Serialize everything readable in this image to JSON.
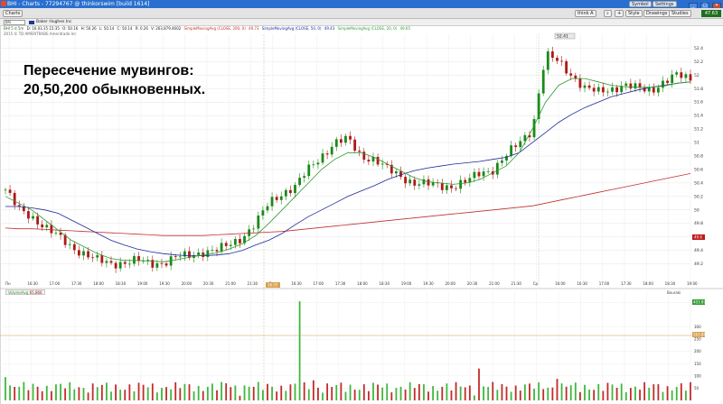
{
  "window": {
    "title": "BHI - Charts - 77294767 @ thinkorswim [build 1614]",
    "controls": [
      "_",
      "□",
      "✕"
    ]
  },
  "toolbar": {
    "charts_tab": "Charts",
    "symbol": "BHI",
    "style_button": "Style",
    "drawings_button": "Drawings",
    "studies_button": "Studies",
    "settings_button": "Settings",
    "symbol_button": "Symbol",
    "think_button": "think A",
    "last_price": "47.63"
  },
  "symbol_bar": {
    "input": "bhi",
    "company": "Baker Hughes Inc"
  },
  "legend": {
    "period": "BHI 5 d 5m",
    "date": "D: 16.03.15 15:35",
    "open": "O: 50.16",
    "high": "H: 50.26",
    "low": "L: 50.14",
    "close": "C: 50.14",
    "range": "R: 0.26",
    "volume": "V: 263,879.4602",
    "sma200": "SimpleMovingAvg (CLOSE, 200, 0)",
    "sma200_val": "49.73",
    "sma50": "SimpleMovingAvg (CLOSE, 50, 0)",
    "sma50_val": "49.43",
    "sma20": "SimpleMovingAvg (CLOSE, 20, 0)",
    "sma20_val": "49.65",
    "copyright": "2015 © TD AMERITRADE Ameritrade Inc"
  },
  "overlay": {
    "line1": "Пересечение мувингов:",
    "line2": "20,50,200 обыкновенных."
  },
  "price_axis": {
    "labels": [
      "52.4",
      "52.2",
      "52",
      "51.8",
      "51.6",
      "51.4",
      "51.2",
      "51",
      "50.8",
      "50.6",
      "50.4",
      "50.2",
      "50",
      "49.8",
      "49.6",
      "49.4",
      "49.2"
    ],
    "current_marker": "49.6",
    "peak_label": "52.41"
  },
  "time_axis": {
    "labels": [
      "Пн",
      "16:30",
      "17:00",
      "17:30",
      "18:00",
      "18:30",
      "19:00",
      "19:30",
      "20:00",
      "20:30",
      "21:00",
      "21:30",
      "Вт",
      "16:30",
      "17:00",
      "17:30",
      "18:00",
      "18:30",
      "19:00",
      "19:30",
      "20:00",
      "20:30",
      "21:00",
      "21:30",
      "Ср",
      "16:00",
      "16:30",
      "17:00",
      "17:30",
      "18:00",
      "18:30",
      "19:00"
    ],
    "cursor_date": "16.03"
  },
  "volume": {
    "study_name": "VolumeAvg",
    "study_value": "65,866",
    "right_label": "Bouraki",
    "axis_labels": [
      "400",
      "300",
      "250",
      "200",
      "150",
      "100",
      "50"
    ],
    "current_tag": "403.89",
    "avg_tag": "263.88"
  },
  "colors": {
    "up": "#1a8a1a",
    "down": "#b01818",
    "sma20": "#2e9a2e",
    "sma50": "#1c2a9a",
    "sma200": "#c03030",
    "title_bar": "#2a6fcf"
  },
  "chart_data": {
    "type": "line",
    "ylim": [
      49.1,
      52.5
    ],
    "x": [
      0,
      5,
      10,
      15,
      20,
      25,
      30,
      35,
      40,
      45,
      50,
      55,
      60,
      65,
      70,
      75,
      80,
      85,
      90,
      95,
      100,
      105,
      110,
      115,
      120,
      125,
      130,
      135,
      140,
      145,
      150,
      155,
      160,
      165,
      170,
      175,
      180,
      185,
      190,
      195,
      200,
      205,
      210,
      215,
      220,
      225,
      230,
      235,
      240,
      245,
      250,
      255,
      260
    ],
    "series": [
      {
        "name": "price",
        "values": [
          50.3,
          50.0,
          49.9,
          49.75,
          49.6,
          49.45,
          49.35,
          49.25,
          49.2,
          49.22,
          49.25,
          49.2,
          49.22,
          49.3,
          49.32,
          49.38,
          49.4,
          49.48,
          49.6,
          49.8,
          50.1,
          50.25,
          50.35,
          50.6,
          50.8,
          51.0,
          51.05,
          50.8,
          50.75,
          50.6,
          50.5,
          50.4,
          50.38,
          50.36,
          50.35,
          50.42,
          50.55,
          50.6,
          50.8,
          51.0,
          51.2,
          52.3,
          52.2,
          52.0,
          51.8,
          51.75,
          51.8,
          51.85,
          51.8,
          51.78,
          51.9,
          52.0,
          51.95
        ]
      },
      {
        "name": "SimpleMovingAvg (CLOSE, 20, 0)",
        "values": [
          50.2,
          50.1,
          50.0,
          49.85,
          49.7,
          49.55,
          49.45,
          49.35,
          49.28,
          49.25,
          49.25,
          49.24,
          49.23,
          49.26,
          49.3,
          49.33,
          49.36,
          49.42,
          49.5,
          49.62,
          49.8,
          50.0,
          50.2,
          50.4,
          50.6,
          50.75,
          50.85,
          50.85,
          50.78,
          50.68,
          50.58,
          50.48,
          50.42,
          50.4,
          50.38,
          50.4,
          50.45,
          50.55,
          50.65,
          50.85,
          51.2,
          51.6,
          51.85,
          51.95,
          51.95,
          51.9,
          51.85,
          51.83,
          51.82,
          51.82,
          51.84,
          51.88,
          51.9
        ]
      },
      {
        "name": "SimpleMovingAvg (CLOSE, 50, 0)",
        "values": [
          50.05,
          50.05,
          50.03,
          50.0,
          49.95,
          49.85,
          49.75,
          49.65,
          49.55,
          49.48,
          49.42,
          49.38,
          49.35,
          49.33,
          49.32,
          49.32,
          49.33,
          49.35,
          49.4,
          49.48,
          49.55,
          49.65,
          49.78,
          49.9,
          50.0,
          50.1,
          50.2,
          50.28,
          50.36,
          50.45,
          50.52,
          50.58,
          50.62,
          50.65,
          50.68,
          50.7,
          50.72,
          50.75,
          50.78,
          50.85,
          51.0,
          51.15,
          51.3,
          51.42,
          51.52,
          51.6,
          51.68,
          51.73,
          51.78,
          51.82,
          51.85,
          51.88,
          51.9
        ]
      },
      {
        "name": "SimpleMovingAvg (CLOSE, 200, 0)",
        "values": [
          49.73,
          49.72,
          49.72,
          49.71,
          49.7,
          49.69,
          49.68,
          49.67,
          49.66,
          49.65,
          49.64,
          49.63,
          49.62,
          49.62,
          49.62,
          49.62,
          49.63,
          49.64,
          49.65,
          49.66,
          49.67,
          49.68,
          49.7,
          49.72,
          49.74,
          49.76,
          49.78,
          49.8,
          49.82,
          49.84,
          49.86,
          49.88,
          49.9,
          49.92,
          49.94,
          49.96,
          49.98,
          50.0,
          50.02,
          50.04,
          50.06,
          50.1,
          50.14,
          50.18,
          50.22,
          50.26,
          50.3,
          50.34,
          50.38,
          50.42,
          50.46,
          50.5,
          50.54
        ]
      }
    ]
  }
}
